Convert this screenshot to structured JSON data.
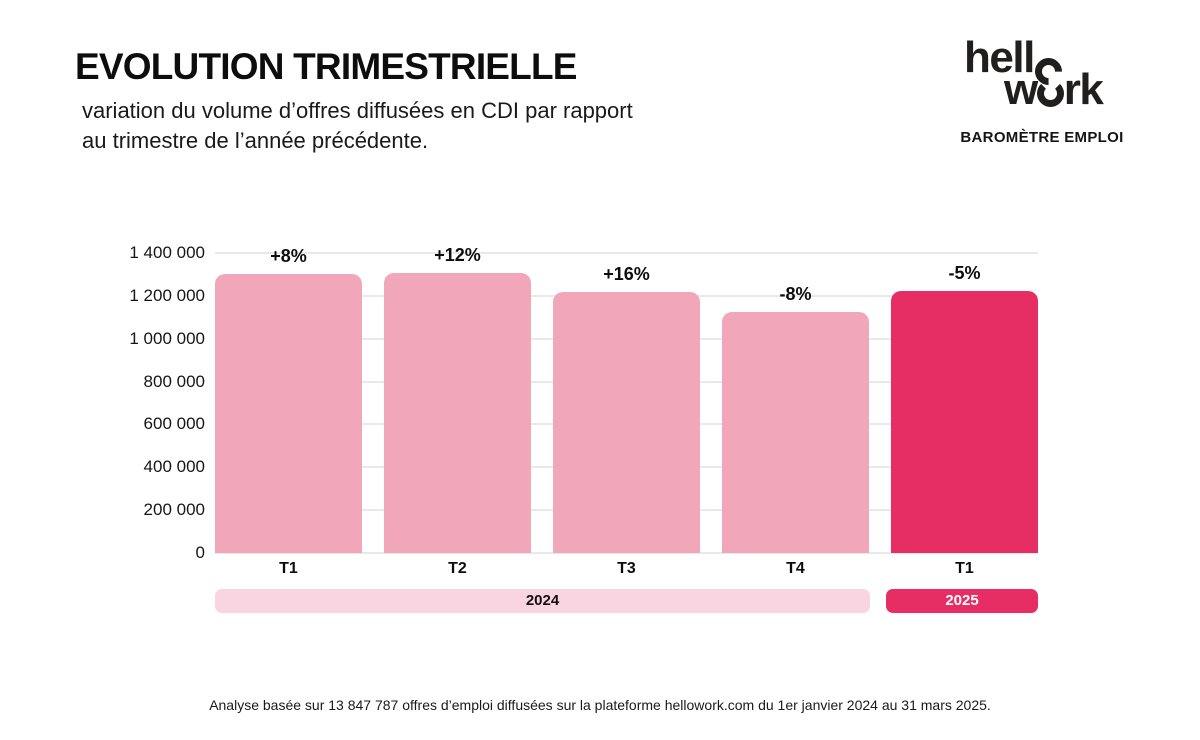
{
  "header": {
    "title": "EVOLUTION TRIMESTRIELLE",
    "subtitle_line1": "variation du volume d’offres diffusées en CDI par rapport",
    "subtitle_line2": "au trimestre de l’année précédente.",
    "logo": {
      "part1": "hell",
      "part2a": "w",
      "part2b": "rk",
      "tagline": "BAROMÈTRE EMPLOI"
    }
  },
  "chart_data": {
    "type": "bar",
    "title": "Evolution trimestrielle du volume d’offres CDI",
    "categories": [
      "T1",
      "T2",
      "T3",
      "T4",
      "T1"
    ],
    "values": [
      1300000,
      1305000,
      1220000,
      1125000,
      1225000
    ],
    "labels": [
      "+8%",
      "+12%",
      "+16%",
      "-8%",
      "-5%"
    ],
    "years": [
      "2024",
      "2024",
      "2024",
      "2024",
      "2025"
    ],
    "xlabel": "",
    "ylabel": "",
    "ylim": [
      0,
      1400000
    ],
    "yticks": [
      "1 400 000",
      "1 200 000",
      "1 000 000",
      "800 000",
      "600 000",
      "400 000",
      "200 000",
      "0"
    ],
    "grid": true,
    "legend_position": "none",
    "palette": {
      "2024": "#F1A7B9",
      "2025": "#E62E64"
    },
    "gridline_color": "#E9E9E9",
    "year_bands": [
      {
        "label": "2024",
        "color": "#F9D4E1",
        "text_color": "#111111"
      },
      {
        "label": "2025",
        "color": "#E62E64",
        "text_color": "#FFFFFF"
      }
    ]
  },
  "footer": {
    "note": "Analyse basée sur 13 847 787 offres d’emploi diffusées sur la plateforme hellowork.com du 1er janvier 2024 au 31 mars 2025."
  }
}
